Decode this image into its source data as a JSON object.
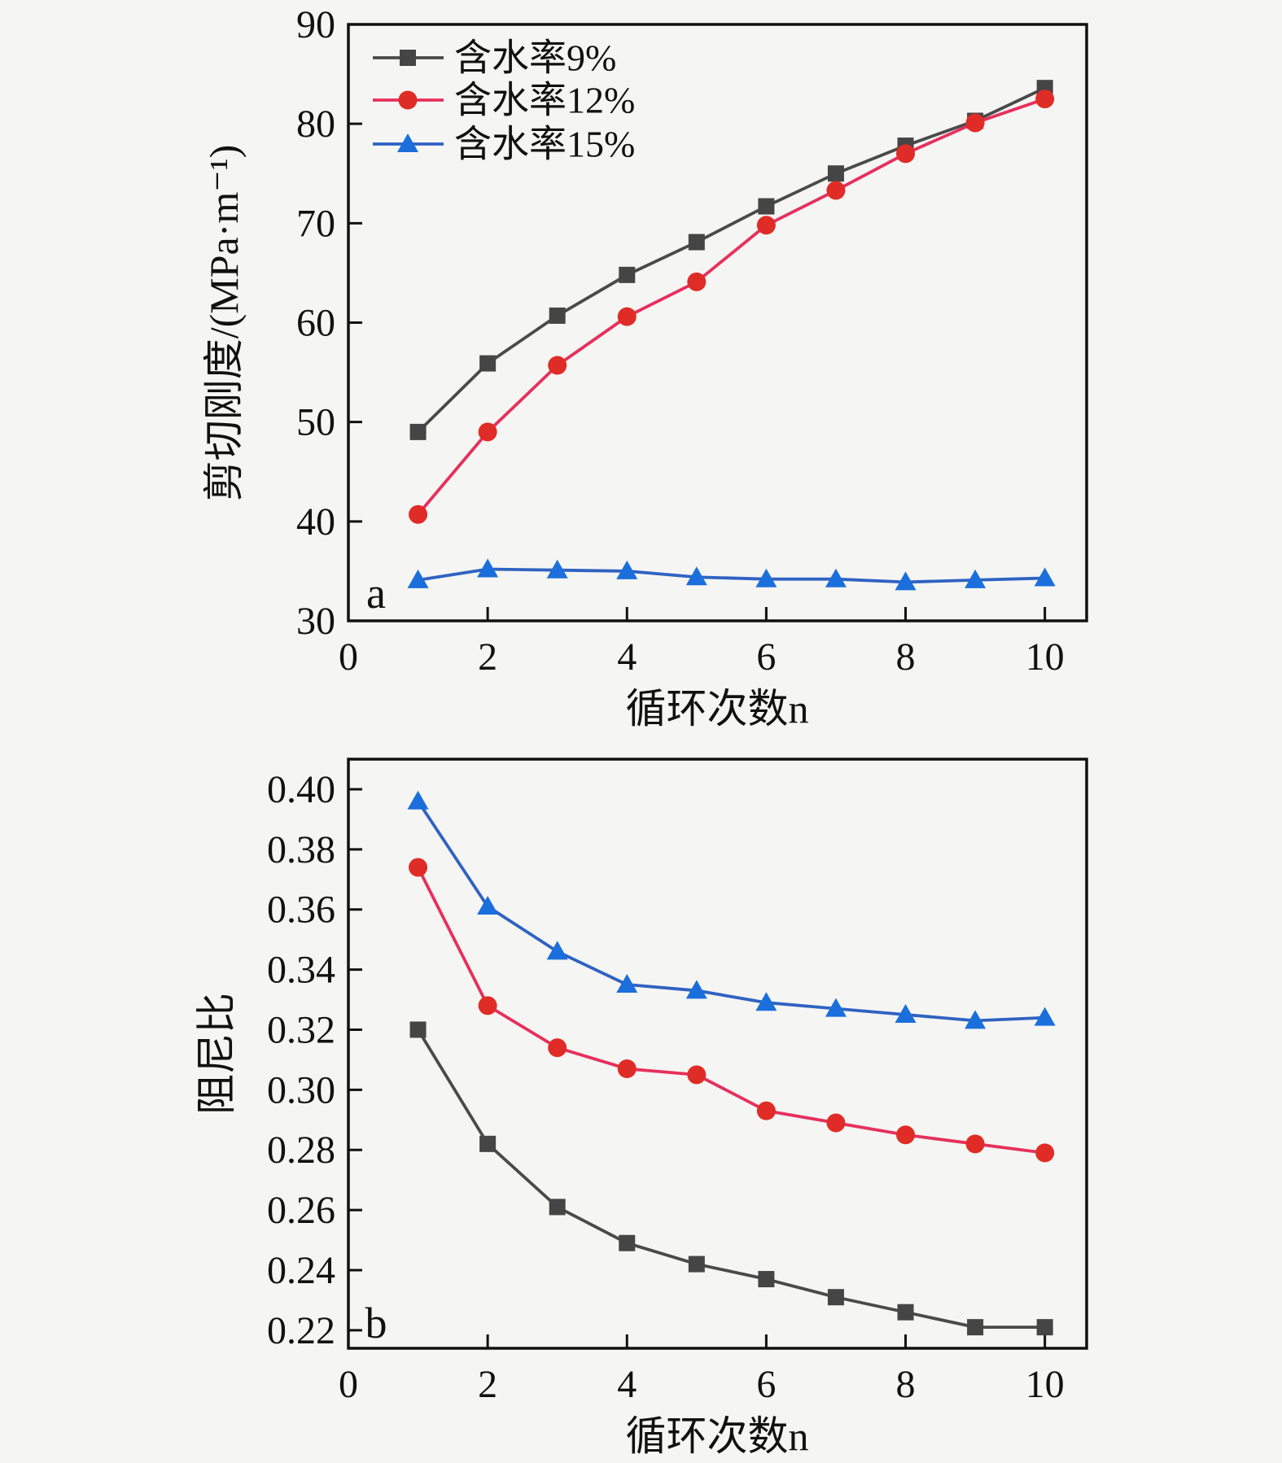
{
  "figure": {
    "background": "#f5f5f3",
    "text_color": "#111111"
  },
  "charts": [
    {
      "panel_label": "a",
      "type": "line",
      "x": [
        1,
        2,
        3,
        4,
        5,
        6,
        7,
        8,
        9,
        10
      ],
      "xlabel": "循环次数n",
      "ylabel": "剪切刚度/(MPa·m⁻¹)",
      "xlim": [
        0,
        10.6
      ],
      "ylim": [
        30,
        90
      ],
      "xticks": [
        0,
        2,
        4,
        6,
        8,
        10
      ],
      "yticks": [
        30,
        40,
        50,
        60,
        70,
        80,
        90
      ],
      "grid": false,
      "legend_position": "top-left-inside",
      "series": [
        {
          "name": "含水率9%",
          "marker": "square",
          "color": "#4a4a4a",
          "marker_color": "#454545",
          "values": [
            49.0,
            55.9,
            60.7,
            64.8,
            68.1,
            71.7,
            75.0,
            77.8,
            80.3,
            83.6
          ]
        },
        {
          "name": "含水率12%",
          "marker": "circle",
          "color": "#e6305c",
          "marker_color": "#e02c26",
          "values": [
            40.7,
            49.0,
            55.7,
            60.6,
            64.1,
            69.8,
            73.3,
            77.0,
            80.1,
            82.5
          ]
        },
        {
          "name": "含水率15%",
          "marker": "triangle",
          "color": "#2f62c2",
          "marker_color": "#1a6fdc",
          "values": [
            34.1,
            35.2,
            35.1,
            35.0,
            34.4,
            34.2,
            34.2,
            33.9,
            34.1,
            34.3
          ]
        }
      ]
    },
    {
      "panel_label": "b",
      "type": "line",
      "x": [
        1,
        2,
        3,
        4,
        5,
        6,
        7,
        8,
        9,
        10
      ],
      "xlabel": "循环次数n",
      "ylabel": "阻尼比",
      "xlim": [
        0,
        10.6
      ],
      "ylim": [
        0.214,
        0.41
      ],
      "xticks": [
        0,
        2,
        4,
        6,
        8,
        10
      ],
      "yticks": [
        0.22,
        0.24,
        0.26,
        0.28,
        0.3,
        0.32,
        0.34,
        0.36,
        0.38,
        0.4
      ],
      "ytick_labels": [
        "0.22",
        "0.24",
        "0.26",
        "0.28",
        "0.30",
        "0.32",
        "0.34",
        "0.36",
        "0.38",
        "0.40"
      ],
      "grid": false,
      "legend_position": "none",
      "series": [
        {
          "name": "含水率9%",
          "marker": "square",
          "color": "#4a4a4a",
          "marker_color": "#454545",
          "values": [
            0.32,
            0.282,
            0.261,
            0.249,
            0.242,
            0.237,
            0.231,
            0.226,
            0.221,
            0.221
          ]
        },
        {
          "name": "含水率12%",
          "marker": "circle",
          "color": "#e6305c",
          "marker_color": "#e02c26",
          "values": [
            0.374,
            0.328,
            0.314,
            0.307,
            0.305,
            0.293,
            0.289,
            0.285,
            0.282,
            0.279
          ]
        },
        {
          "name": "含水率15%",
          "marker": "triangle",
          "color": "#2f62c2",
          "marker_color": "#1a6fdc",
          "values": [
            0.396,
            0.361,
            0.346,
            0.335,
            0.333,
            0.329,
            0.327,
            0.325,
            0.323,
            0.324
          ]
        }
      ]
    }
  ]
}
